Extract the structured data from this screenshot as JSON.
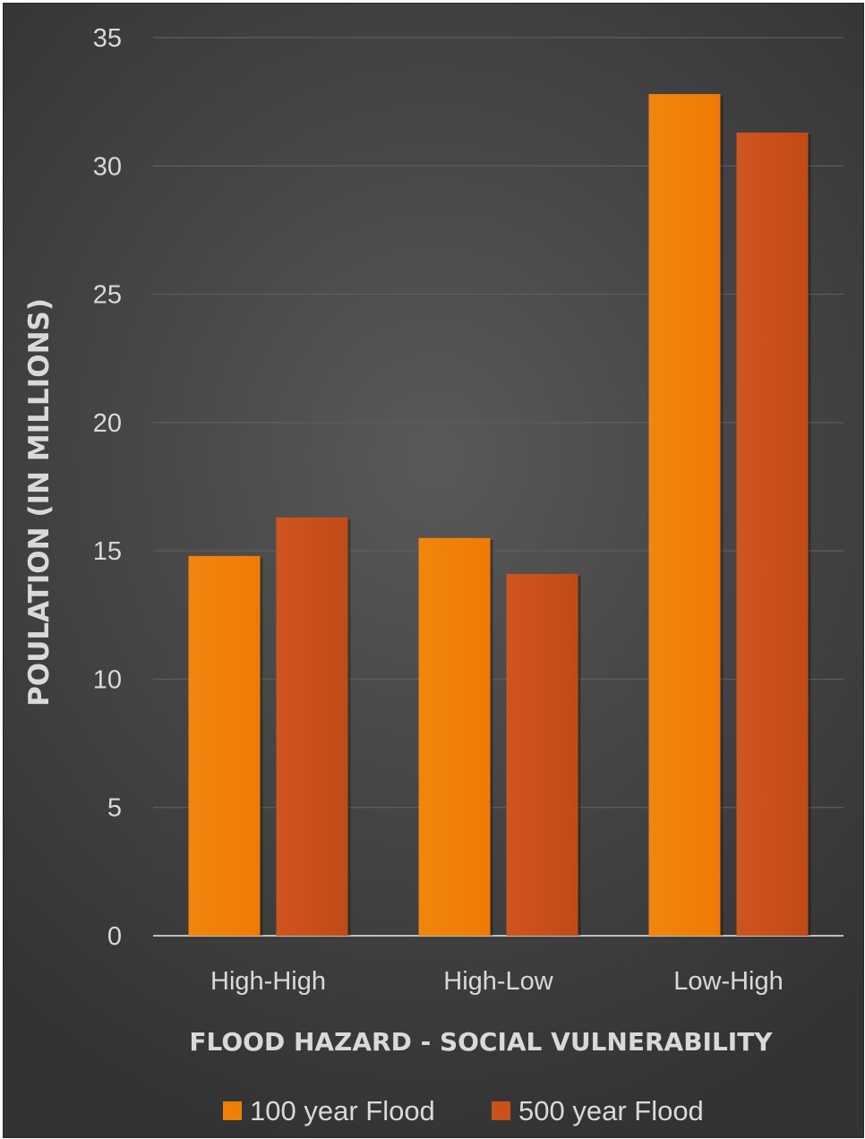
{
  "chart_data": {
    "type": "bar",
    "categories": [
      "High-High",
      "High-Low",
      "Low-High"
    ],
    "series": [
      {
        "name": "100 year Flood",
        "values": [
          14.8,
          15.5,
          32.8
        ],
        "color": "#f07f09"
      },
      {
        "name": "500 year Flood",
        "values": [
          16.3,
          14.1,
          31.3
        ],
        "color": "#c9511b"
      }
    ],
    "title": "",
    "xlabel": "FLOOD HAZARD - SOCIAL VULNERABILITY",
    "ylabel": "POULATION (IN MILLIONS)",
    "ylim": [
      0,
      35
    ],
    "yticks": [
      "0",
      "5",
      "10",
      "15",
      "20",
      "25",
      "30",
      "35"
    ],
    "grid": true,
    "legend_position": "bottom",
    "background_color": "#404040",
    "text_color": "#d9d9d9"
  }
}
